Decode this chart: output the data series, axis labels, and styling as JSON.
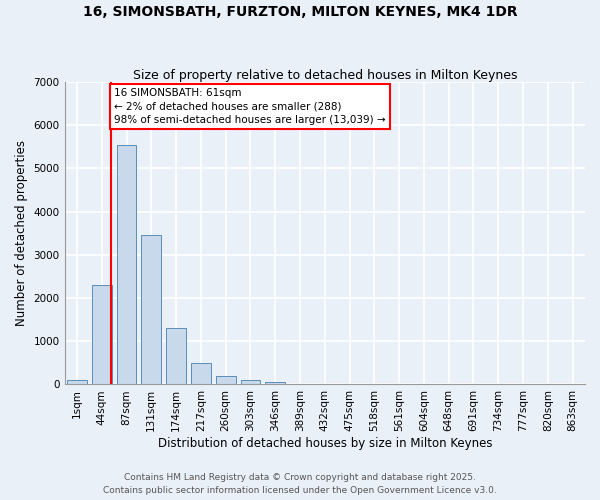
{
  "title1": "16, SIMONSBATH, FURZTON, MILTON KEYNES, MK4 1DR",
  "title2": "Size of property relative to detached houses in Milton Keynes",
  "xlabel": "Distribution of detached houses by size in Milton Keynes",
  "ylabel": "Number of detached properties",
  "bin_labels": [
    "1sqm",
    "44sqm",
    "87sqm",
    "131sqm",
    "174sqm",
    "217sqm",
    "260sqm",
    "303sqm",
    "346sqm",
    "389sqm",
    "432sqm",
    "475sqm",
    "518sqm",
    "561sqm",
    "604sqm",
    "648sqm",
    "691sqm",
    "734sqm",
    "777sqm",
    "820sqm",
    "863sqm"
  ],
  "bar_heights": [
    100,
    2300,
    5550,
    3450,
    1300,
    500,
    200,
    100,
    50,
    0,
    0,
    0,
    0,
    0,
    0,
    0,
    0,
    0,
    0,
    0,
    0
  ],
  "bar_color": "#c9d9ec",
  "bar_edge_color": "#5b8db8",
  "bar_width": 0.8,
  "ylim": [
    0,
    7000
  ],
  "yticks": [
    0,
    1000,
    2000,
    3000,
    4000,
    5000,
    6000,
    7000
  ],
  "red_line_x": 1.38,
  "annotation_text": "16 SIMONSBATH: 61sqm\n← 2% of detached houses are smaller (288)\n98% of semi-detached houses are larger (13,039) →",
  "footer_line1": "Contains HM Land Registry data © Crown copyright and database right 2025.",
  "footer_line2": "Contains public sector information licensed under the Open Government Licence v3.0.",
  "background_color": "#eaf0f8",
  "plot_background": "#eaf0f8",
  "grid_color": "#ffffff",
  "title1_fontsize": 10,
  "title2_fontsize": 9,
  "axis_label_fontsize": 8.5,
  "tick_fontsize": 7.5,
  "footer_fontsize": 6.5
}
